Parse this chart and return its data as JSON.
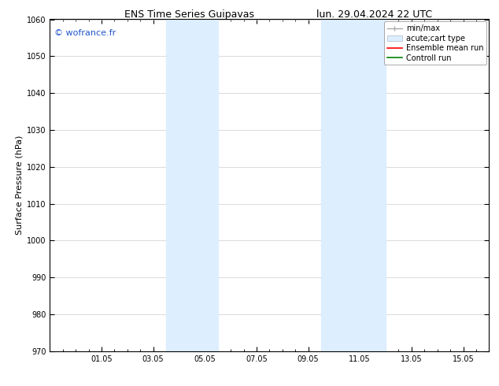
{
  "title_left": "ENS Time Series Guipavas",
  "title_right": "lun. 29.04.2024 22 UTC",
  "ylabel": "Surface Pressure (hPa)",
  "ylim": [
    970,
    1060
  ],
  "yticks": [
    970,
    980,
    990,
    1000,
    1010,
    1020,
    1030,
    1040,
    1050,
    1060
  ],
  "xtick_labels": [
    "01.05",
    "03.05",
    "05.05",
    "07.05",
    "09.05",
    "11.05",
    "13.05",
    "15.05"
  ],
  "xtick_positions": [
    2,
    4,
    6,
    8,
    10,
    12,
    14,
    16
  ],
  "xlim": [
    0,
    17
  ],
  "shaded_bands": [
    {
      "x_start": 4.5,
      "x_end": 6.5
    },
    {
      "x_start": 10.5,
      "x_end": 13.0
    }
  ],
  "shade_color": "#ddeeff",
  "watermark_text": "© wofrance.fr",
  "watermark_color": "#2255cc",
  "bg_color": "#ffffff",
  "grid_color": "#cccccc",
  "title_fontsize": 9,
  "ylabel_fontsize": 8,
  "tick_fontsize": 7,
  "watermark_fontsize": 8,
  "legend_fontsize": 7
}
